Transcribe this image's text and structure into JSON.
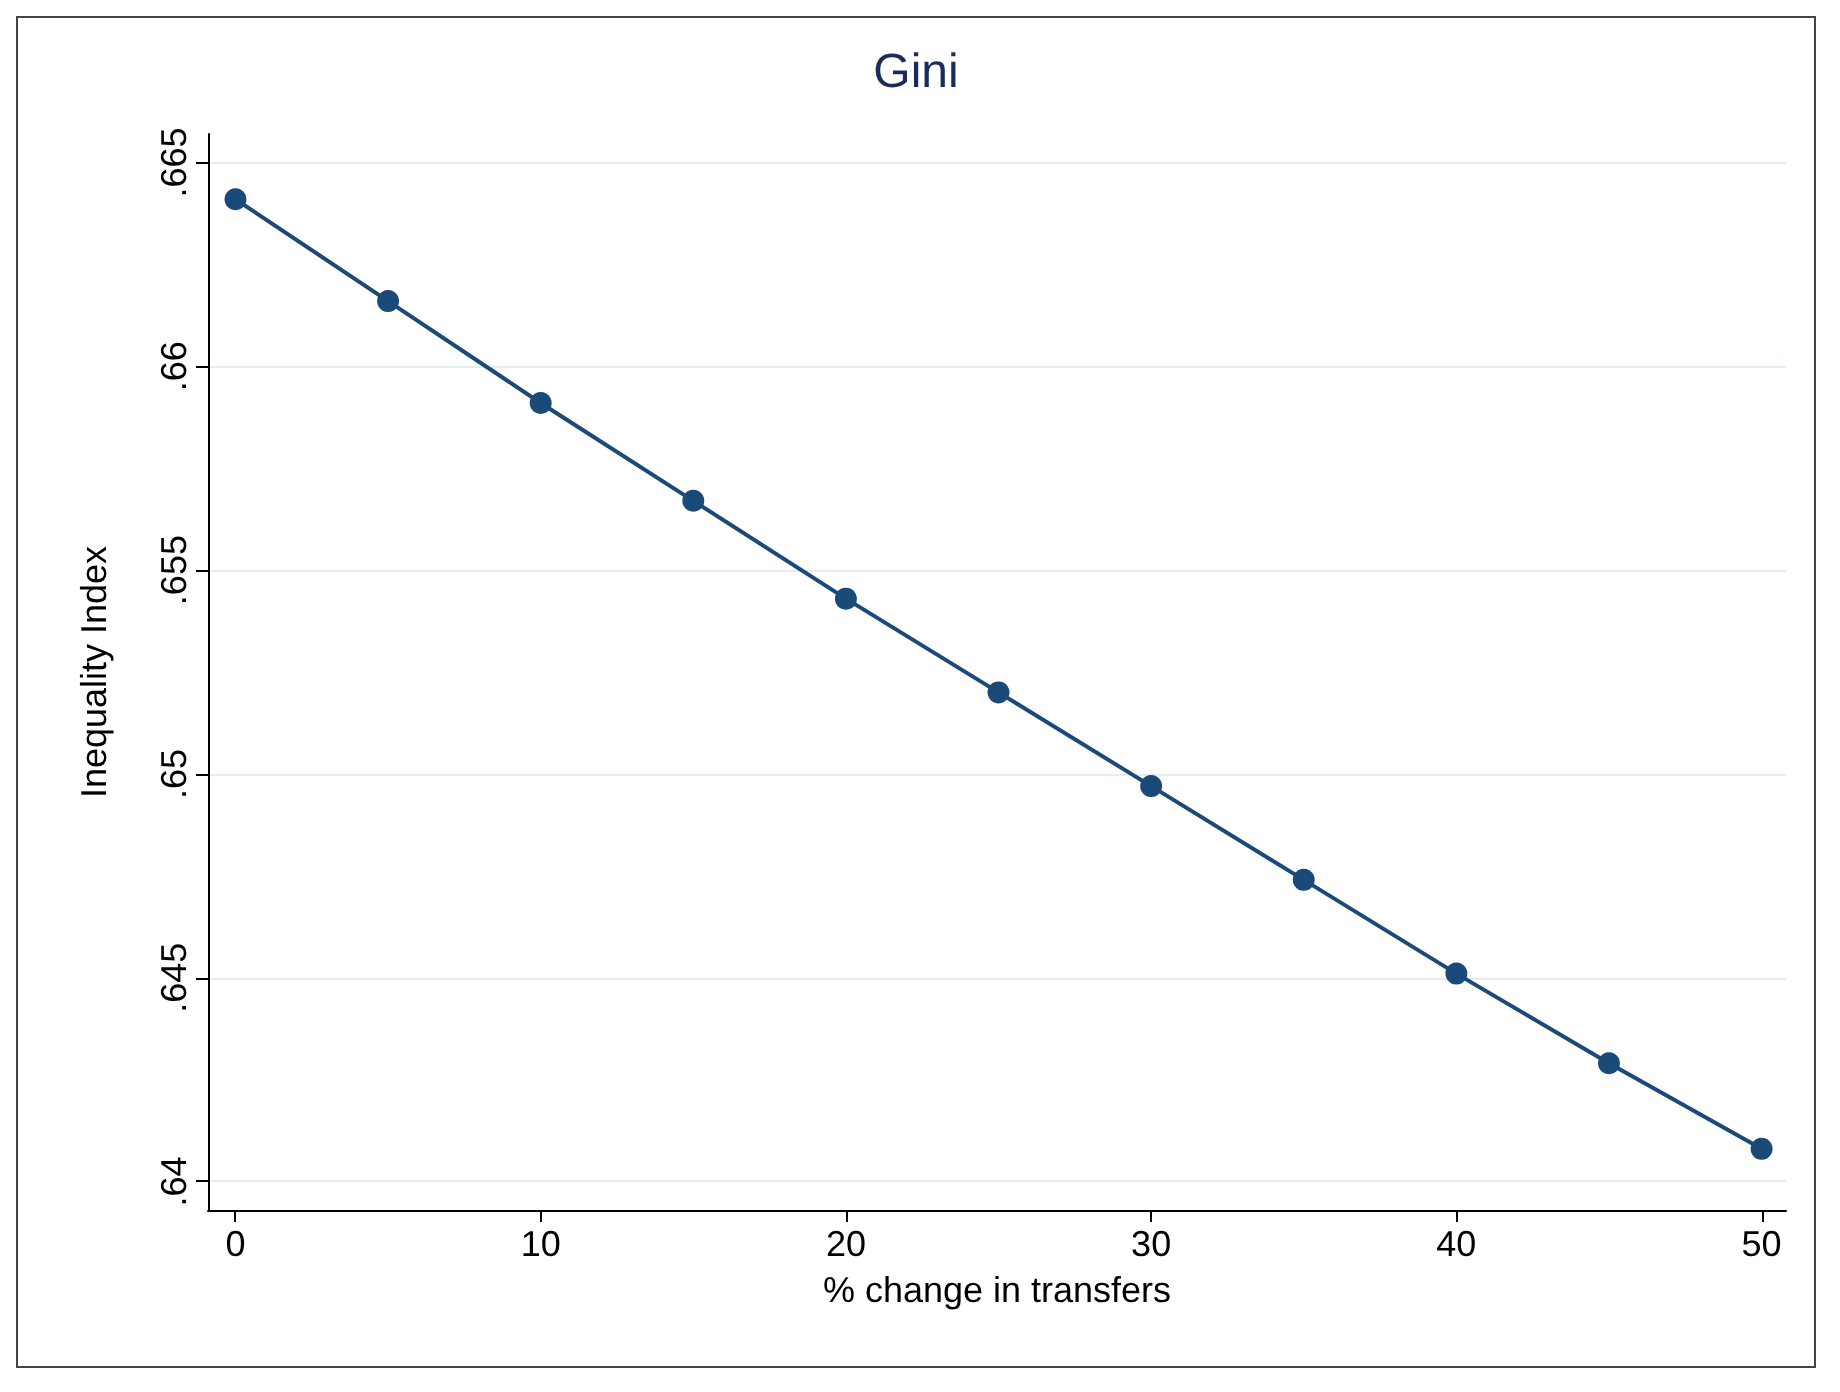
{
  "chart_data": {
    "type": "line",
    "title": "Gini",
    "xlabel": "% change in transfers",
    "ylabel": "Inequality Index",
    "x": [
      0,
      5,
      10,
      15,
      20,
      25,
      30,
      35,
      40,
      45,
      50
    ],
    "series": [
      {
        "color": "#1a4a78",
        "values": [
          0.6641,
          0.6616,
          0.6591,
          0.6567,
          0.6543,
          0.652,
          0.6497,
          0.6474,
          0.6451,
          0.6429,
          0.6408
        ]
      }
    ],
    "xlim": [
      -0.9,
      50.8
    ],
    "xticks": [
      0,
      10,
      20,
      30,
      40,
      50
    ],
    "ylim": [
      0.6393,
      0.6657
    ],
    "yticks": [
      {
        "value": 0.64,
        "label": ".64"
      },
      {
        "value": 0.645,
        "label": ".645"
      },
      {
        "value": 0.65,
        "label": ".65"
      },
      {
        "value": 0.655,
        "label": ".655"
      },
      {
        "value": 0.66,
        "label": ".66"
      },
      {
        "value": 0.665,
        "label": ".665"
      }
    ],
    "grid": "y",
    "marker": "circle",
    "line_style": "solid"
  }
}
